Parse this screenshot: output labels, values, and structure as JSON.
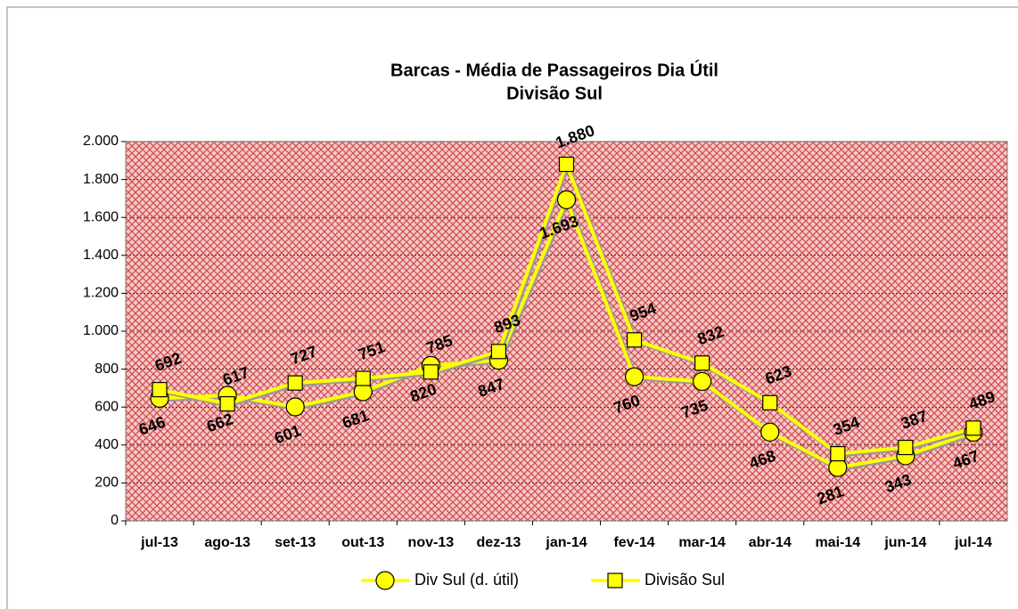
{
  "chart_data": {
    "type": "line",
    "title": "Barcas - Média de Passageiros Dia Útil",
    "subtitle": "Divisão Sul",
    "categories": [
      "jul-13",
      "ago-13",
      "set-13",
      "out-13",
      "nov-13",
      "dez-13",
      "jan-14",
      "fev-14",
      "mar-14",
      "abr-14",
      "mai-14",
      "jun-14",
      "jul-14"
    ],
    "series": [
      {
        "name": "Div Sul (d. útil)",
        "color": "#ffff00",
        "marker": "circle",
        "values": [
          646,
          662,
          601,
          681,
          820,
          847,
          1693,
          760,
          735,
          468,
          281,
          343,
          467
        ],
        "value_labels": [
          "646",
          "662",
          "601",
          "681",
          "820",
          "847",
          "1.693",
          "760",
          "735",
          "468",
          "281",
          "343",
          "467"
        ]
      },
      {
        "name": "Divisão Sul",
        "color": "#ffff00",
        "marker": "square",
        "values": [
          692,
          617,
          727,
          751,
          785,
          893,
          1880,
          954,
          832,
          623,
          354,
          387,
          489
        ],
        "value_labels": [
          "692",
          "617",
          "727",
          "751",
          "785",
          "893",
          "1.880",
          "954",
          "832",
          "623",
          "354",
          "387",
          "489"
        ]
      }
    ],
    "ylim": [
      0,
      2000
    ],
    "yticks": [
      0,
      200,
      400,
      600,
      800,
      {
        "value": 1000,
        "label": "1.000"
      },
      {
        "value": 1200,
        "label": "1.200"
      },
      {
        "value": 1400,
        "label": "1.400"
      },
      {
        "value": 1600,
        "label": "1.600"
      },
      {
        "value": 1800,
        "label": "1.800"
      },
      {
        "value": 2000,
        "label": "2.000"
      }
    ],
    "grid": true,
    "legend": "bottom"
  }
}
